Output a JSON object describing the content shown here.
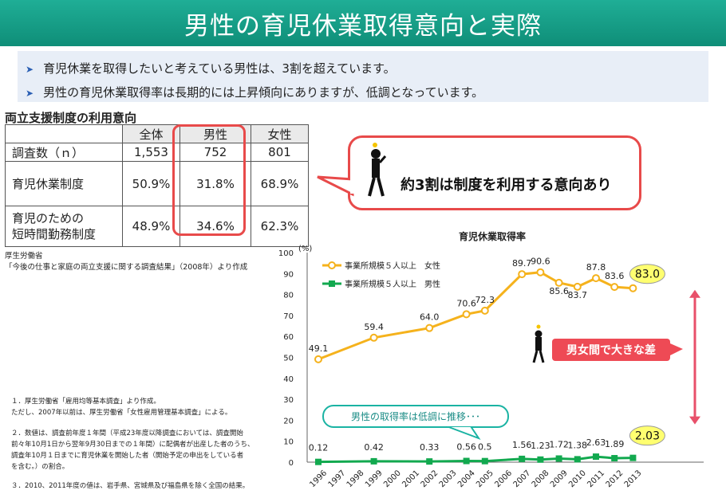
{
  "header": {
    "title": "男性の育児休業取得意向と実際"
  },
  "bullets": [
    "育児休業を取得したいと考えている男性は、3割を超えています。",
    "男性の育児休業取得率は長期的には上昇傾向にありますが、低調となっています。"
  ],
  "usage_table": {
    "title": "両立支援制度の利用意向",
    "headers": [
      "",
      "全体",
      "男性",
      "女性"
    ],
    "rows": [
      [
        "調査数（ｎ）",
        "1,553",
        "752",
        "801"
      ],
      [
        "育児休業制度",
        "50.9%",
        "31.8%",
        "68.9%"
      ],
      [
        "育児のための",
        "48.9%",
        "34.6%",
        "62.3%"
      ]
    ],
    "row3_line2": "短時間勤務制度"
  },
  "callout": {
    "text": "約3割は制度を利用する意向あり"
  },
  "source": {
    "org": "厚生労働省",
    "text": "「今後の仕事と家庭の両立支援に関する調査結果」（2008年）より作成"
  },
  "notes": [
    "１．厚生労働省「雇用均等基本調査」より作成。",
    "ただし、2007年以前は、厚生労働省「女性雇用管理基本調査」による。",
    "２．数値は、調査前年度１年間（平成23年度以降調査においては、調査開始",
    "前々年10月1日から翌年9月30日までの１年間）に配偶者が出産した者のうち、",
    "調査年10月１日までに育児休業を開始した者（開始予定の申出をしている者",
    "を含む。）の割合。",
    "３．2010、2011年度の値は、岩手県、宮城県及び福島県を除く全国の結果。"
  ],
  "chart_data": {
    "type": "line",
    "title": "育児休業取得率",
    "ylabel": "(%)",
    "ylim": [
      0,
      100
    ],
    "yticks": [
      0,
      10,
      20,
      30,
      40,
      50,
      60,
      70,
      80,
      90,
      100
    ],
    "x": [
      "1996",
      "1997",
      "1998",
      "1999",
      "2000",
      "2001",
      "2002",
      "2003",
      "2004",
      "2005",
      "2006",
      "2007",
      "2008",
      "2009",
      "2010",
      "2011",
      "2012",
      "2013"
    ],
    "series": [
      {
        "name": "事業所規模５人以上　女性",
        "color": "#f5b21c",
        "points": [
          [
            "1996",
            49.1
          ],
          [
            "1999",
            59.4
          ],
          [
            "2002",
            64.0
          ],
          [
            "2004",
            70.6
          ],
          [
            "2005",
            72.3
          ],
          [
            "2007",
            89.7
          ],
          [
            "2008",
            90.6
          ],
          [
            "2009",
            85.6
          ],
          [
            "2010",
            83.7
          ],
          [
            "2011",
            87.8
          ],
          [
            "2012",
            83.6
          ],
          [
            "2013",
            83.0
          ]
        ],
        "labels": [
          "49.1",
          "59.4",
          "64.0",
          "70.6",
          "72.3",
          "89.7",
          "90.6",
          "85.6",
          "83.7",
          "87.8",
          "83.6",
          "83.0"
        ]
      },
      {
        "name": "事業所規模５人以上　男性",
        "color": "#12a94f",
        "points": [
          [
            "1996",
            0.12
          ],
          [
            "1999",
            0.42
          ],
          [
            "2002",
            0.33
          ],
          [
            "2004",
            0.56
          ],
          [
            "2005",
            0.5
          ],
          [
            "2007",
            1.56
          ],
          [
            "2008",
            1.23
          ],
          [
            "2009",
            1.72
          ],
          [
            "2010",
            1.38
          ],
          [
            "2011",
            2.63
          ],
          [
            "2012",
            1.89
          ],
          [
            "2013",
            2.03
          ]
        ],
        "labels": [
          "0.12",
          "0.42",
          "0.33",
          "0.56",
          "0.5",
          "1.56",
          "1.23",
          "1.72",
          "1.38",
          "2.63",
          "1.89",
          "2.03"
        ]
      }
    ],
    "annotations": {
      "gap": "男女間で大きな差",
      "male_note": "男性の取得率は低調に推移･･･"
    }
  }
}
